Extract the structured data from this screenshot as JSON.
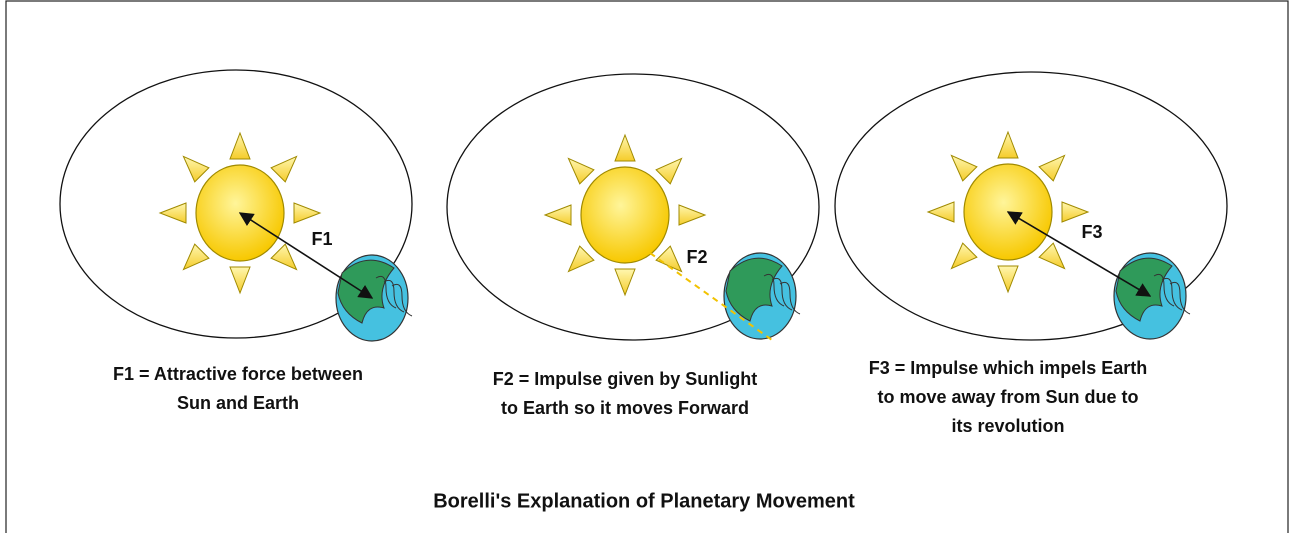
{
  "title": "Borelli's Explanation of Planetary Movement",
  "panels": [
    {
      "label": "F1",
      "caption": [
        "F1 = Attractive force between",
        "Sun and Earth"
      ]
    },
    {
      "label": "F2",
      "caption": [
        "F2 = Impulse given by Sunlight",
        "to Earth so it moves Forward"
      ]
    },
    {
      "label": "F3",
      "caption": [
        "F3 = Impulse which impels Earth",
        "to move away from Sun due to",
        "its revolution"
      ]
    }
  ]
}
